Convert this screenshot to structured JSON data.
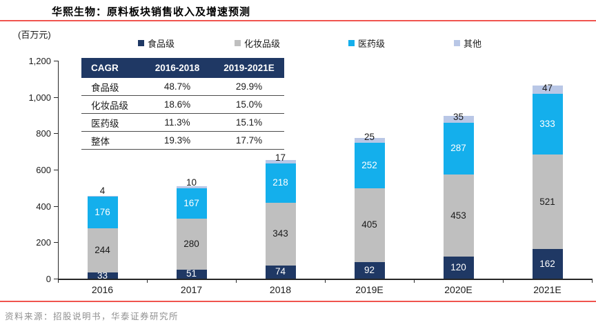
{
  "header": {
    "title": "华熙生物：原料板块销售收入及增速预测"
  },
  "footer": {
    "source": "资料来源：招股说明书，华泰证券研究所"
  },
  "colors": {
    "accent_rule": "#F0534E",
    "food_grade": "#1F3864",
    "cosmetic_grade": "#BFBFBF",
    "pharma_grade": "#14AFEC",
    "other": "#B9C7E6",
    "axis": "#262626",
    "table_header_bg": "#1F3864"
  },
  "table": {
    "columns": [
      "CAGR",
      "2016-2018",
      "2019-2021E"
    ],
    "rows": [
      {
        "label": "食品级",
        "c1": "48.7%",
        "c2": "29.9%"
      },
      {
        "label": "化妆品级",
        "c1": "18.6%",
        "c2": "15.0%"
      },
      {
        "label": "医药级",
        "c1": "11.3%",
        "c2": "15.1%"
      },
      {
        "label": "整体",
        "c1": "19.3%",
        "c2": "17.7%"
      }
    ]
  },
  "chart_data": {
    "type": "bar",
    "stacked": true,
    "title": "华熙生物：原料板块销售收入及增速预测",
    "ylabel": "(百万元)",
    "xlabel": "",
    "ylim": [
      0,
      1200
    ],
    "grid": false,
    "legend_position": "top",
    "categories": [
      "2016",
      "2017",
      "2018",
      "2019E",
      "2020E",
      "2021E"
    ],
    "series": [
      {
        "name": "食品级",
        "slug": "food-grade",
        "color": "#1F3864",
        "label_color": "#FFFFFF",
        "values": [
          33,
          51,
          74,
          92,
          120,
          162
        ]
      },
      {
        "name": "化妆品级",
        "slug": "cosmetic-grade",
        "color": "#BFBFBF",
        "label_color": "#1A1A1A",
        "values": [
          244,
          280,
          343,
          405,
          453,
          521
        ]
      },
      {
        "name": "医药级",
        "slug": "pharma-grade",
        "color": "#14AFEC",
        "label_color": "#FFFFFF",
        "values": [
          176,
          167,
          218,
          252,
          287,
          333
        ]
      },
      {
        "name": "其他",
        "slug": "other",
        "color": "#B9C7E6",
        "label_color": "#1A1A1A",
        "values": [
          4,
          10,
          17,
          25,
          35,
          47
        ]
      }
    ],
    "yticks": [
      {
        "v": 0,
        "label": "0"
      },
      {
        "v": 200,
        "label": "200"
      },
      {
        "v": 400,
        "label": "400"
      },
      {
        "v": 600,
        "label": "600"
      },
      {
        "v": 800,
        "label": "800"
      },
      {
        "v": 1000,
        "label": "1,000"
      },
      {
        "v": 1200,
        "label": "1,200"
      }
    ]
  }
}
